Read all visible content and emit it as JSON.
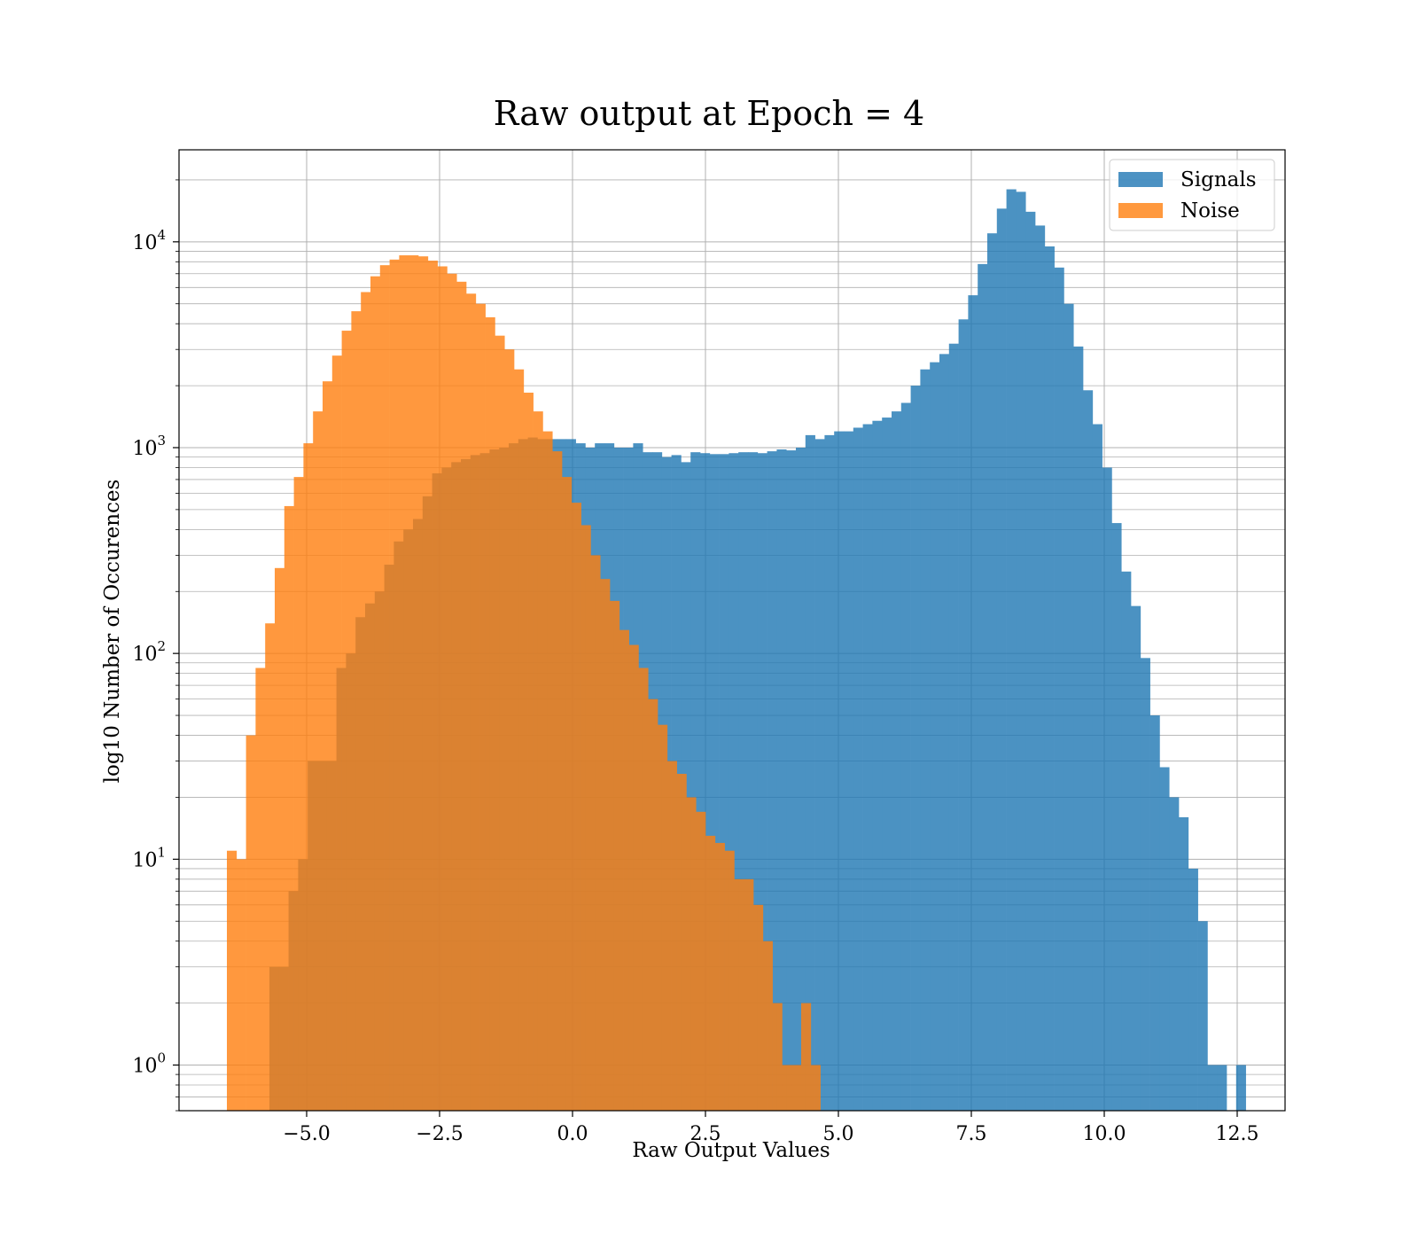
{
  "chart_data": {
    "type": "histogram",
    "title": "Raw output at Epoch = 4",
    "xlabel": "Raw Output Values",
    "ylabel": "log10 Number of Occurences",
    "xlim": [
      -7.4,
      13.4
    ],
    "ylim": [
      0.6,
      28000
    ],
    "yscale": "log",
    "grid": true,
    "legend_position": "top-right",
    "x_ticks": [
      -5.0,
      -2.5,
      0.0,
      2.5,
      5.0,
      7.5,
      10.0,
      12.5
    ],
    "x_tick_labels": [
      "−5.0",
      "−2.5",
      "0.0",
      "2.5",
      "5.0",
      "7.5",
      "10.0",
      "12.5"
    ],
    "y_ticks": [
      1,
      10,
      100,
      1000,
      10000
    ],
    "y_tick_exponents": [
      "0",
      "1",
      "2",
      "3",
      "4"
    ],
    "series": [
      {
        "name": "Signals",
        "color": "#1f77b4",
        "bin_start": -5.7,
        "bin_width": 0.18,
        "counts": [
          3,
          3,
          7,
          10,
          30,
          30,
          30,
          85,
          100,
          150,
          175,
          200,
          270,
          350,
          400,
          450,
          580,
          750,
          800,
          850,
          880,
          920,
          940,
          980,
          1000,
          1050,
          1100,
          1120,
          1100,
          1100,
          1100,
          1100,
          1050,
          1000,
          1050,
          1050,
          1000,
          1000,
          1050,
          950,
          950,
          900,
          920,
          850,
          950,
          940,
          930,
          930,
          940,
          950,
          950,
          940,
          960,
          980,
          970,
          1000,
          1150,
          1100,
          1150,
          1200,
          1200,
          1250,
          1300,
          1350,
          1400,
          1500,
          1650,
          2000,
          2400,
          2600,
          2850,
          3200,
          4200,
          5500,
          7800,
          11000,
          14500,
          18000,
          17500,
          14000,
          12000,
          9500,
          7500,
          5000,
          3100,
          1900,
          1300,
          800,
          430,
          250,
          170,
          95,
          50,
          28,
          20,
          16,
          9,
          5,
          1,
          1,
          0,
          1
        ]
      },
      {
        "name": "Noise",
        "color": "#ff7f0e",
        "bin_start": -6.5,
        "bin_width": 0.18,
        "counts": [
          11,
          10,
          40,
          85,
          140,
          260,
          520,
          720,
          1050,
          1500,
          2100,
          2800,
          3700,
          4600,
          5700,
          6800,
          7700,
          8200,
          8600,
          8600,
          8500,
          8100,
          7600,
          7000,
          6400,
          5600,
          5000,
          4300,
          3500,
          3000,
          2400,
          1850,
          1500,
          1200,
          960,
          720,
          540,
          420,
          300,
          230,
          180,
          130,
          110,
          85,
          60,
          45,
          30,
          26,
          20,
          17,
          13,
          12,
          11,
          8,
          8,
          6,
          4,
          2,
          1,
          1,
          2,
          1
        ]
      }
    ]
  }
}
